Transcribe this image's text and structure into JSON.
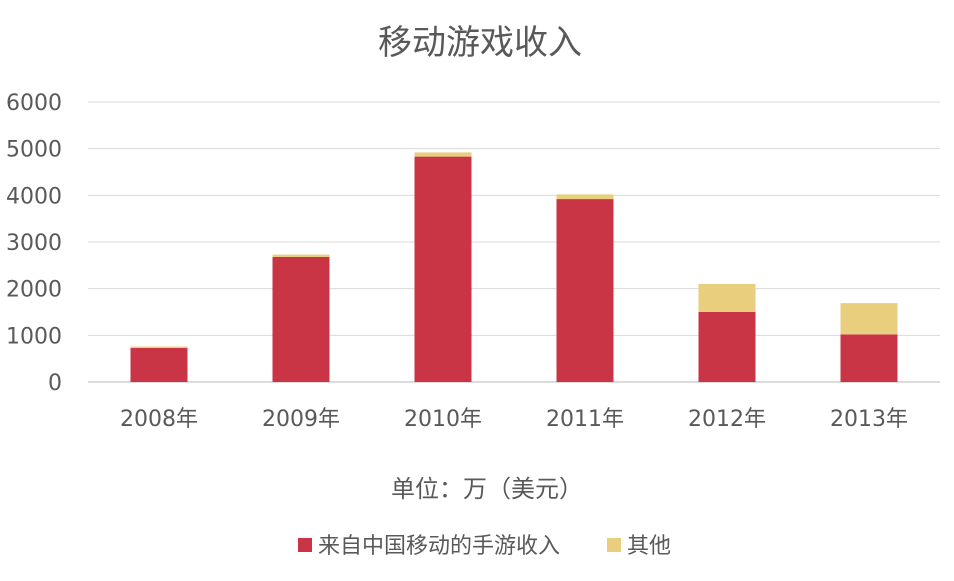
{
  "chart_data": {
    "type": "bar",
    "stacked": true,
    "title": "移动游戏收入",
    "xlabel": "单位：万（美元）",
    "ylabel": "",
    "categories": [
      "2008年",
      "2009年",
      "2010年",
      "2011年",
      "2012年",
      "2013年"
    ],
    "series": [
      {
        "name": "来自中国移动的手游收入",
        "color": "#C93545",
        "values": [
          730,
          2680,
          4830,
          3920,
          1500,
          1020
        ]
      },
      {
        "name": "其他",
        "color": "#E9CE7D",
        "values": [
          30,
          50,
          90,
          100,
          600,
          670
        ]
      }
    ],
    "ylim": [
      0,
      6000
    ],
    "yticks": [
      "0",
      "1000",
      "2000",
      "3000",
      "4000",
      "5000",
      "6000"
    ],
    "grid": true,
    "legend_position": "bottom",
    "gridline_color": "#D9D9D9",
    "axis_color": "#D0D0D0"
  }
}
